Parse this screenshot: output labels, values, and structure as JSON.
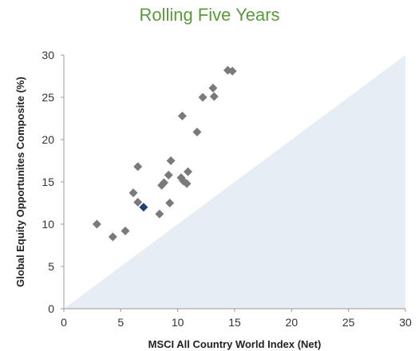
{
  "chart_data": {
    "type": "scatter",
    "title": "Rolling Five Years",
    "xlabel": "MSCI All Country World Index (Net)",
    "ylabel": "Global Equity Opportunites Composite (%)",
    "xlim": [
      0,
      30
    ],
    "ylim": [
      0,
      30
    ],
    "xticks": [
      "0",
      "5",
      "10",
      "15",
      "20",
      "25",
      "30"
    ],
    "yticks": [
      "0",
      "5",
      "10",
      "15",
      "20",
      "25",
      "30"
    ],
    "grid": false,
    "diagonal_region": "below y = x",
    "colors": {
      "title": "#5b9a3c",
      "points": "#7a7a7a",
      "highlight": "#1f3f78",
      "region": "#e6edf4"
    },
    "points": [
      {
        "x": 2.9,
        "y": 10.0
      },
      {
        "x": 4.3,
        "y": 8.5
      },
      {
        "x": 5.4,
        "y": 9.2
      },
      {
        "x": 6.1,
        "y": 13.7
      },
      {
        "x": 6.5,
        "y": 12.6
      },
      {
        "x": 6.5,
        "y": 16.8
      },
      {
        "x": 8.4,
        "y": 11.2
      },
      {
        "x": 8.6,
        "y": 14.6
      },
      {
        "x": 8.8,
        "y": 14.9
      },
      {
        "x": 9.2,
        "y": 15.8
      },
      {
        "x": 9.3,
        "y": 12.5
      },
      {
        "x": 9.4,
        "y": 17.5
      },
      {
        "x": 10.3,
        "y": 15.5
      },
      {
        "x": 10.4,
        "y": 22.8
      },
      {
        "x": 10.5,
        "y": 15.1
      },
      {
        "x": 10.8,
        "y": 14.8
      },
      {
        "x": 10.9,
        "y": 16.2
      },
      {
        "x": 11.7,
        "y": 20.9
      },
      {
        "x": 12.2,
        "y": 25.0
      },
      {
        "x": 13.1,
        "y": 26.1
      },
      {
        "x": 13.2,
        "y": 25.1
      },
      {
        "x": 14.4,
        "y": 28.2
      },
      {
        "x": 14.8,
        "y": 28.1
      }
    ],
    "highlight_points": [
      {
        "x": 7.0,
        "y": 12.0
      }
    ]
  }
}
